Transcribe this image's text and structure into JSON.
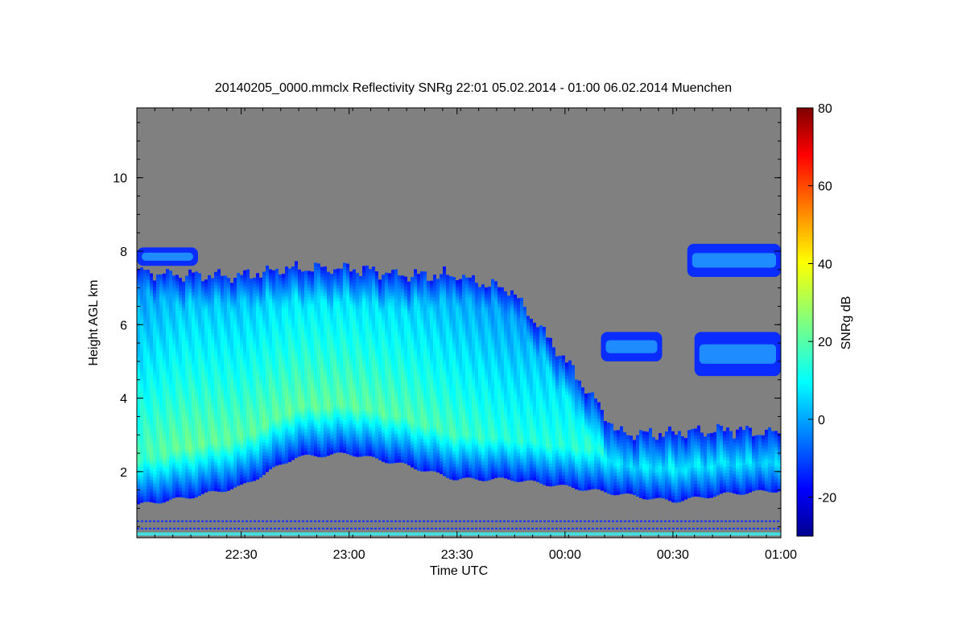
{
  "chart_data": {
    "type": "heatmap",
    "title": "20140205_0000.mmclx Reflectivity SNRg   22:01 05.02.2014 - 01:00 06.02.2014 Muenchen",
    "xlabel": "Time UTC",
    "ylabel": "Height AGL km",
    "colorbar_label": "SNRg dB",
    "x_ticks": [
      "22:30",
      "23:00",
      "23:30",
      "00:00",
      "00:30",
      "01:00"
    ],
    "y_ticks": [
      "2",
      "4",
      "6",
      "8",
      "10"
    ],
    "colorbar_ticks": [
      "-20",
      "0",
      "20",
      "40",
      "60",
      "80"
    ],
    "xlim": [
      "22:01",
      "01:00"
    ],
    "ylim": [
      0.2,
      11.9
    ],
    "colorbar_range": [
      -30,
      80
    ],
    "colormap": "jet",
    "background_color": "#808080",
    "cloud_profile": {
      "columns": [
        "time",
        "base_km",
        "top_km",
        "peak_height_km",
        "peak_snr_db"
      ],
      "rows": [
        [
          "22:01",
          1.1,
          7.4,
          2.6,
          18
        ],
        [
          "22:15",
          1.3,
          7.3,
          2.6,
          22
        ],
        [
          "22:30",
          1.6,
          7.3,
          3.0,
          20
        ],
        [
          "22:45",
          2.4,
          7.5,
          3.5,
          22
        ],
        [
          "23:00",
          2.5,
          7.5,
          3.5,
          22
        ],
        [
          "23:15",
          2.2,
          7.3,
          3.4,
          20
        ],
        [
          "23:30",
          1.8,
          7.3,
          3.0,
          18
        ],
        [
          "23:45",
          1.8,
          6.9,
          2.6,
          16
        ],
        [
          "00:00",
          1.6,
          5.0,
          2.4,
          16
        ],
        [
          "00:15",
          1.4,
          3.0,
          2.2,
          18
        ],
        [
          "00:30",
          1.2,
          3.0,
          1.9,
          24
        ],
        [
          "00:45",
          1.4,
          3.1,
          1.8,
          22
        ],
        [
          "01:00",
          1.5,
          3.0,
          1.9,
          20
        ]
      ]
    },
    "upper_cloud_patches": [
      {
        "start": "22:01",
        "end": "22:18",
        "base_km": 7.6,
        "top_km": 8.1
      },
      {
        "start": "00:34",
        "end": "01:00",
        "base_km": 7.3,
        "top_km": 8.2
      },
      {
        "start": "00:36",
        "end": "01:00",
        "base_km": 4.6,
        "top_km": 5.8
      },
      {
        "start": "00:10",
        "end": "00:27",
        "base_km": 5.0,
        "top_km": 5.8
      }
    ],
    "low_echo_lines_km": [
      0.3,
      0.45,
      0.65
    ]
  }
}
